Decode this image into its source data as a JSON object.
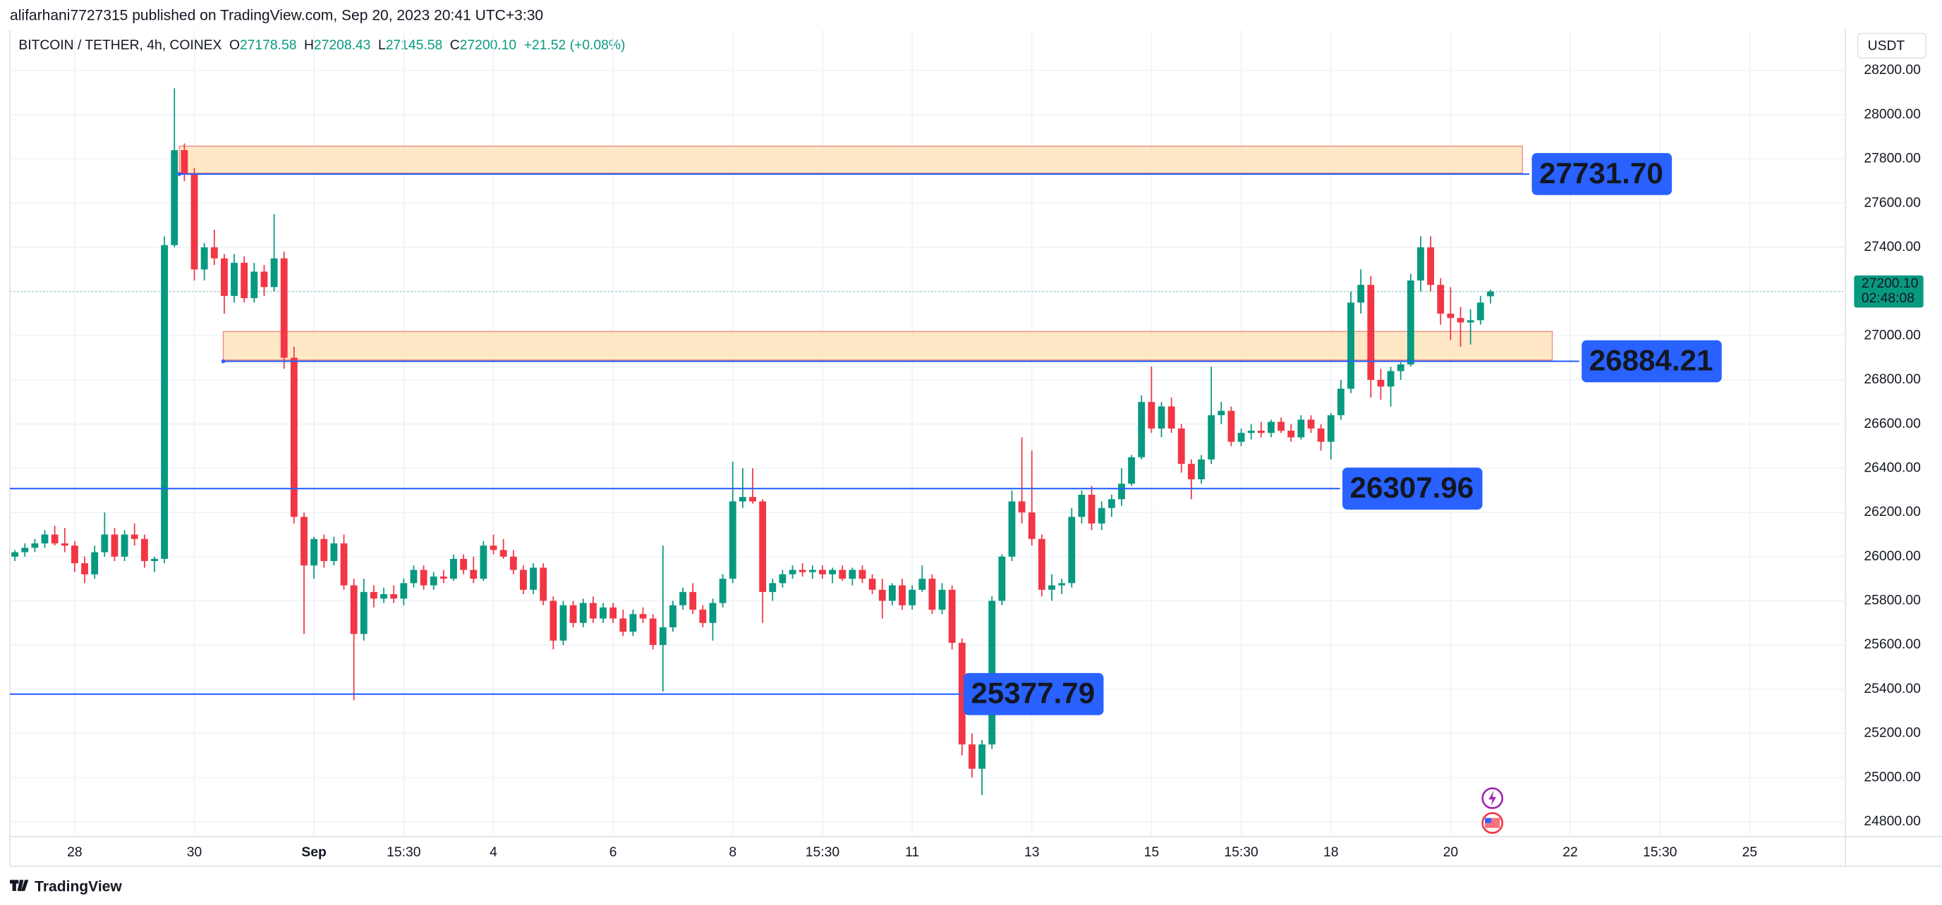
{
  "header": {
    "publisher": "alifarhani7727315 published on TradingView.com, Sep 20, 2023 20:41 UTC+3:30",
    "symbol": "BITCOIN / TETHER, 4h, COINEX",
    "ohlc": [
      {
        "key": "O",
        "value": "27178.58"
      },
      {
        "key": "H",
        "value": "27208.43"
      },
      {
        "key": "L",
        "value": "27145.58"
      },
      {
        "key": "C",
        "value": "27200.10"
      }
    ],
    "change": "+21.52 (+0.08%)",
    "currency": "USDT"
  },
  "footer": {
    "brand": "TradingView"
  },
  "chart_data": {
    "type": "candlestick",
    "up_color": "#089981",
    "down_color": "#f23645",
    "grid": true,
    "open": [
      26000,
      26020,
      26040,
      26060,
      26100,
      26060,
      26050,
      25970,
      25920,
      26020,
      26100,
      26000,
      26100,
      26080,
      25980,
      25990,
      27410,
      27840,
      27730,
      27300,
      27400,
      27350,
      27180,
      27330,
      27170,
      27290,
      27220,
      27350,
      26900,
      26180,
      25960,
      26080,
      25980,
      26060,
      25870,
      25650,
      25840,
      25810,
      25830,
      25810,
      25880,
      25940,
      25870,
      25910,
      25900,
      25990,
      25940,
      25900,
      26050,
      26030,
      26000,
      25940,
      25850,
      25950,
      25800,
      25620,
      25780,
      25700,
      25790,
      25720,
      25770,
      25720,
      25660,
      25740,
      25720,
      25600,
      25680,
      25780,
      25840,
      25760,
      25700,
      25790,
      25900,
      26250,
      26270,
      26250,
      25840,
      25880,
      25920,
      25940,
      25930,
      25940,
      25920,
      25940,
      25900,
      25940,
      25900,
      25850,
      25800,
      25870,
      25780,
      25850,
      25900,
      25760,
      25850,
      25610,
      25150,
      25040,
      25150,
      25800,
      26000,
      26250,
      26200,
      26080,
      25850,
      25870,
      25880,
      26180,
      26280,
      26150,
      26220,
      26260,
      26330,
      26450,
      26700,
      26580,
      26680,
      26580,
      26420,
      26350,
      26440,
      26640,
      26660,
      26520,
      26560,
      26570,
      26560,
      26610,
      26570,
      26540,
      26620,
      26580,
      26520,
      26640,
      26760,
      27150,
      27230,
      26800,
      26770,
      26840,
      26870,
      27250,
      27400,
      27230,
      27100,
      27080,
      27060,
      27070,
      27178.58
    ],
    "high": [
      26030,
      26060,
      26080,
      26120,
      26140,
      26130,
      26070,
      26000,
      26050,
      26200,
      26130,
      26120,
      26150,
      26100,
      26000,
      27450,
      28120,
      27870,
      27760,
      27420,
      27480,
      27370,
      27370,
      27360,
      27330,
      27320,
      27550,
      27380,
      26950,
      26200,
      26090,
      26100,
      26090,
      26100,
      25900,
      25900,
      25870,
      25860,
      25870,
      25900,
      25960,
      25960,
      25930,
      25940,
      26010,
      26010,
      26000,
      26070,
      26100,
      26080,
      26030,
      25960,
      25970,
      25970,
      25820,
      25800,
      25800,
      25810,
      25820,
      25790,
      25790,
      25760,
      25760,
      25770,
      25740,
      26050,
      25800,
      25860,
      25880,
      25780,
      25810,
      25920,
      26430,
      26400,
      26400,
      26260,
      25900,
      25940,
      25960,
      25970,
      25960,
      25960,
      25950,
      25960,
      25950,
      25960,
      25920,
      25900,
      25880,
      25900,
      25870,
      25960,
      25920,
      25880,
      25870,
      25630,
      25200,
      25170,
      25820,
      26010,
      26300,
      26540,
      26480,
      26100,
      25920,
      25900,
      26220,
      26300,
      26320,
      26250,
      26280,
      26400,
      26460,
      26730,
      26860,
      26700,
      26720,
      26600,
      26440,
      26460,
      26860,
      26700,
      26680,
      26580,
      26600,
      26610,
      26620,
      26630,
      26600,
      26640,
      26640,
      26600,
      26650,
      26800,
      27200,
      27300,
      27270,
      26850,
      26860,
      26880,
      27280,
      27450,
      27450,
      27260,
      27220,
      27130,
      27120,
      27180,
      27208.43
    ],
    "low": [
      25980,
      26000,
      26020,
      26040,
      26050,
      26020,
      25930,
      25880,
      25900,
      26000,
      25980,
      25980,
      26050,
      25950,
      25930,
      25970,
      27400,
      27700,
      27250,
      27250,
      27320,
      27100,
      27150,
      27150,
      27150,
      27180,
      27200,
      26850,
      26150,
      25650,
      25900,
      25950,
      25960,
      25850,
      25350,
      25620,
      25770,
      25790,
      25790,
      25780,
      25860,
      25850,
      25850,
      25880,
      25890,
      25920,
      25880,
      25890,
      26010,
      25990,
      25920,
      25830,
      25830,
      25780,
      25580,
      25600,
      25680,
      25680,
      25700,
      25700,
      25700,
      25640,
      25640,
      25700,
      25580,
      25390,
      25660,
      25760,
      25740,
      25680,
      25620,
      25770,
      25880,
      26220,
      26240,
      25700,
      25800,
      25860,
      25900,
      25910,
      25900,
      25900,
      25880,
      25890,
      25870,
      25880,
      25830,
      25720,
      25780,
      25760,
      25760,
      25840,
      25740,
      25740,
      25580,
      25100,
      25000,
      24920,
      25130,
      25780,
      25980,
      26150,
      26050,
      25820,
      25800,
      25830,
      25860,
      26150,
      26120,
      26120,
      26180,
      26230,
      26320,
      26440,
      26560,
      26540,
      26560,
      26380,
      26260,
      26330,
      26420,
      26600,
      26500,
      26500,
      26530,
      26540,
      26540,
      26560,
      26520,
      26530,
      26560,
      26480,
      26440,
      26620,
      26740,
      27100,
      26720,
      26710,
      26680,
      26800,
      26860,
      27200,
      27200,
      27050,
      26980,
      26950,
      26960,
      27050,
      27145.58
    ],
    "close": [
      26020,
      26040,
      26060,
      26100,
      26060,
      26050,
      25970,
      25920,
      26020,
      26100,
      26000,
      26100,
      26080,
      25980,
      25990,
      27410,
      27840,
      27730,
      27300,
      27400,
      27350,
      27180,
      27330,
      27170,
      27290,
      27220,
      27350,
      26900,
      26180,
      25960,
      26080,
      25980,
      26060,
      25870,
      25650,
      25840,
      25810,
      25830,
      25810,
      25880,
      25940,
      25870,
      25910,
      25900,
      25990,
      25940,
      25900,
      26050,
      26030,
      26000,
      25940,
      25850,
      25950,
      25800,
      25620,
      25780,
      25700,
      25790,
      25720,
      25770,
      25720,
      25660,
      25740,
      25720,
      25600,
      25680,
      25780,
      25840,
      25760,
      25700,
      25790,
      25900,
      26250,
      26270,
      26250,
      25840,
      25880,
      25920,
      25940,
      25930,
      25940,
      25920,
      25940,
      25900,
      25940,
      25900,
      25850,
      25800,
      25870,
      25780,
      25850,
      25900,
      25760,
      25850,
      25610,
      25150,
      25040,
      25150,
      25800,
      26000,
      26250,
      26200,
      26080,
      25850,
      25870,
      25880,
      26180,
      26280,
      26150,
      26220,
      26260,
      26330,
      26450,
      26700,
      26580,
      26680,
      26580,
      26420,
      26350,
      26440,
      26640,
      26660,
      26520,
      26560,
      26570,
      26560,
      26610,
      26570,
      26540,
      26620,
      26580,
      26520,
      26640,
      26760,
      27150,
      27230,
      26800,
      26770,
      26840,
      26870,
      27250,
      27400,
      27230,
      27100,
      27080,
      27060,
      27070,
      27150,
      27200.1
    ],
    "xlim": [
      -0.5,
      183.6
    ],
    "xticks": [
      {
        "value": 6,
        "label": "28"
      },
      {
        "value": 18,
        "label": "30"
      },
      {
        "value": 30,
        "label": "Sep"
      },
      {
        "value": 39,
        "label": "15:30"
      },
      {
        "value": 48,
        "label": "4"
      },
      {
        "value": 60,
        "label": "6"
      },
      {
        "value": 72,
        "label": "8"
      },
      {
        "value": 81,
        "label": "15:30"
      },
      {
        "value": 90,
        "label": "11"
      },
      {
        "value": 102,
        "label": "13"
      },
      {
        "value": 114,
        "label": "15"
      },
      {
        "value": 123,
        "label": "15:30"
      },
      {
        "value": 132,
        "label": "18"
      },
      {
        "value": 144,
        "label": "20"
      },
      {
        "value": 156,
        "label": "22"
      },
      {
        "value": 165,
        "label": "15:30"
      },
      {
        "value": 174,
        "label": "25"
      }
    ],
    "ylim": [
      24733,
      28385
    ],
    "yticks": [
      {
        "value": 24800,
        "label": "24800.00"
      },
      {
        "value": 25000,
        "label": "25000.00"
      },
      {
        "value": 25200,
        "label": "25200.00"
      },
      {
        "value": 25400,
        "label": "25400.00"
      },
      {
        "value": 25600,
        "label": "25600.00"
      },
      {
        "value": 25800,
        "label": "25800.00"
      },
      {
        "value": 26000,
        "label": "26000.00"
      },
      {
        "value": 26200,
        "label": "26200.00"
      },
      {
        "value": 26400,
        "label": "26400.00"
      },
      {
        "value": 26600,
        "label": "26600.00"
      },
      {
        "value": 26800,
        "label": "26800.00"
      },
      {
        "value": 27000,
        "label": "27000.00"
      },
      {
        "value": 27200,
        "label": "27200.00"
      },
      {
        "value": 27400,
        "label": "27400.00"
      },
      {
        "value": 27600,
        "label": "27600.00"
      },
      {
        "value": 27800,
        "label": "27800.00"
      },
      {
        "value": 28000,
        "label": "28000.00"
      },
      {
        "value": 28200,
        "label": "28200.00"
      }
    ],
    "zones": [
      {
        "top": 27858,
        "bottom": 27736,
        "start": 16.5,
        "end": 151.2
      },
      {
        "top": 27019,
        "bottom": 26890,
        "start": 20.9,
        "end": 154.2
      }
    ],
    "levels": [
      {
        "value": 27731.7,
        "label": "27731.70",
        "start": 16.5,
        "end": 151.9
      },
      {
        "value": 26884.21,
        "label": "26884.21",
        "start": 20.9,
        "end": 156.9
      },
      {
        "value": 26307.96,
        "label": "26307.96",
        "start": -0.5,
        "end": 132.9
      },
      {
        "value": 25377.79,
        "label": "25377.79",
        "start": -0.5,
        "end": 94.9
      }
    ],
    "last": {
      "value": 27200.1,
      "label": "27200.10",
      "countdown": "02:48:08"
    }
  }
}
